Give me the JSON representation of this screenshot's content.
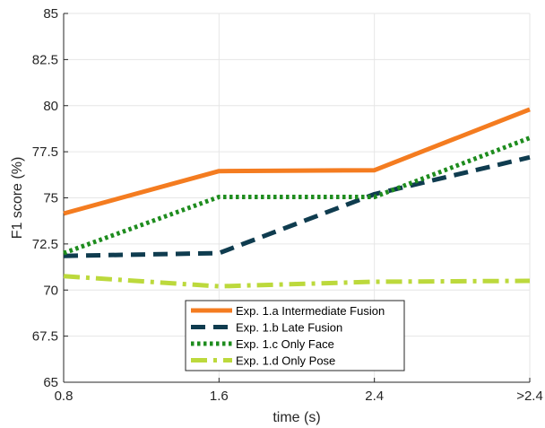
{
  "chart_data": {
    "type": "line",
    "title": "",
    "xlabel": "time (s)",
    "ylabel": "F1 score (%)",
    "categories": [
      "0.8",
      "1.6",
      "2.4",
      ">2.4"
    ],
    "ylim": [
      65,
      85
    ],
    "yticks": [
      "65",
      "67.5",
      "70",
      "72.5",
      "75",
      "77.5",
      "80",
      "82.5",
      "85"
    ],
    "grid": true,
    "legend_position": "bottom-center",
    "series": [
      {
        "name": "Exp. 1.a Intermediate Fusion",
        "values": [
          74.15,
          76.45,
          76.5,
          79.8
        ],
        "color": "#f47c20",
        "style": "solid"
      },
      {
        "name": "Exp. 1.b Late Fusion",
        "values": [
          71.85,
          72.0,
          75.2,
          77.2
        ],
        "color": "#0f3c4f",
        "style": "dashed"
      },
      {
        "name": "Exp. 1.c Only Face",
        "values": [
          72.0,
          75.05,
          75.05,
          78.25
        ],
        "color": "#1e8c1e",
        "style": "dotted"
      },
      {
        "name": "Exp. 1.d Only Pose",
        "values": [
          70.75,
          70.2,
          70.45,
          70.5
        ],
        "color": "#bcd93c",
        "style": "dashdot"
      }
    ]
  }
}
